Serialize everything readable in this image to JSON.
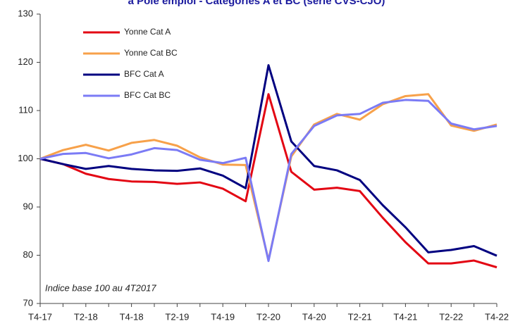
{
  "chart_data": {
    "type": "line",
    "title": "à Pôle emploi - Catégories A et BC (série CVS-CJO)",
    "annotation": "Indice base 100 au 4T2017",
    "categories": [
      "T4-17",
      null,
      "T2-18",
      null,
      "T4-18",
      null,
      "T2-19",
      null,
      "T4-19",
      null,
      "T2-20",
      null,
      "T4-20",
      null,
      "T2-21",
      null,
      "T4-21",
      null,
      "T2-22",
      null,
      "T4-22"
    ],
    "series": [
      {
        "name": "Yonne  Cat A",
        "color": "#e30613",
        "values": [
          100,
          98.9,
          96.9,
          95.8,
          95.3,
          95.2,
          94.8,
          95.1,
          93.8,
          91.2,
          113.4,
          97.3,
          93.6,
          94.0,
          93.3,
          87.8,
          82.7,
          78.3,
          78.3,
          78.9,
          77.5
        ]
      },
      {
        "name": "Yonne  Cat BC",
        "color": "#f7a14a",
        "values": [
          100,
          101.8,
          102.9,
          101.7,
          103.3,
          103.9,
          102.7,
          100.3,
          98.8,
          98.7,
          79.0,
          100.5,
          107.1,
          109.3,
          108.1,
          111.3,
          113.0,
          113.4,
          106.9,
          105.8,
          107.1
        ]
      },
      {
        "name": "BFC Cat A",
        "color": "#000080",
        "values": [
          100,
          98.9,
          97.9,
          98.5,
          97.9,
          97.6,
          97.5,
          98.0,
          96.5,
          93.9,
          119.4,
          103.6,
          98.5,
          97.6,
          95.6,
          90.4,
          85.8,
          80.6,
          81.1,
          81.9,
          79.9
        ]
      },
      {
        "name": "BFC Cat BC",
        "color": "#7b7bf5",
        "values": [
          100,
          101.0,
          101.2,
          100.1,
          100.9,
          102.2,
          101.8,
          99.8,
          99.1,
          100.2,
          78.8,
          101.0,
          106.8,
          109.0,
          109.3,
          111.6,
          112.2,
          112.0,
          107.3,
          106.1,
          106.8
        ]
      }
    ],
    "ylim": [
      70,
      130
    ],
    "yticks": [
      70,
      80,
      90,
      100,
      110,
      120,
      130
    ],
    "grid": false
  }
}
